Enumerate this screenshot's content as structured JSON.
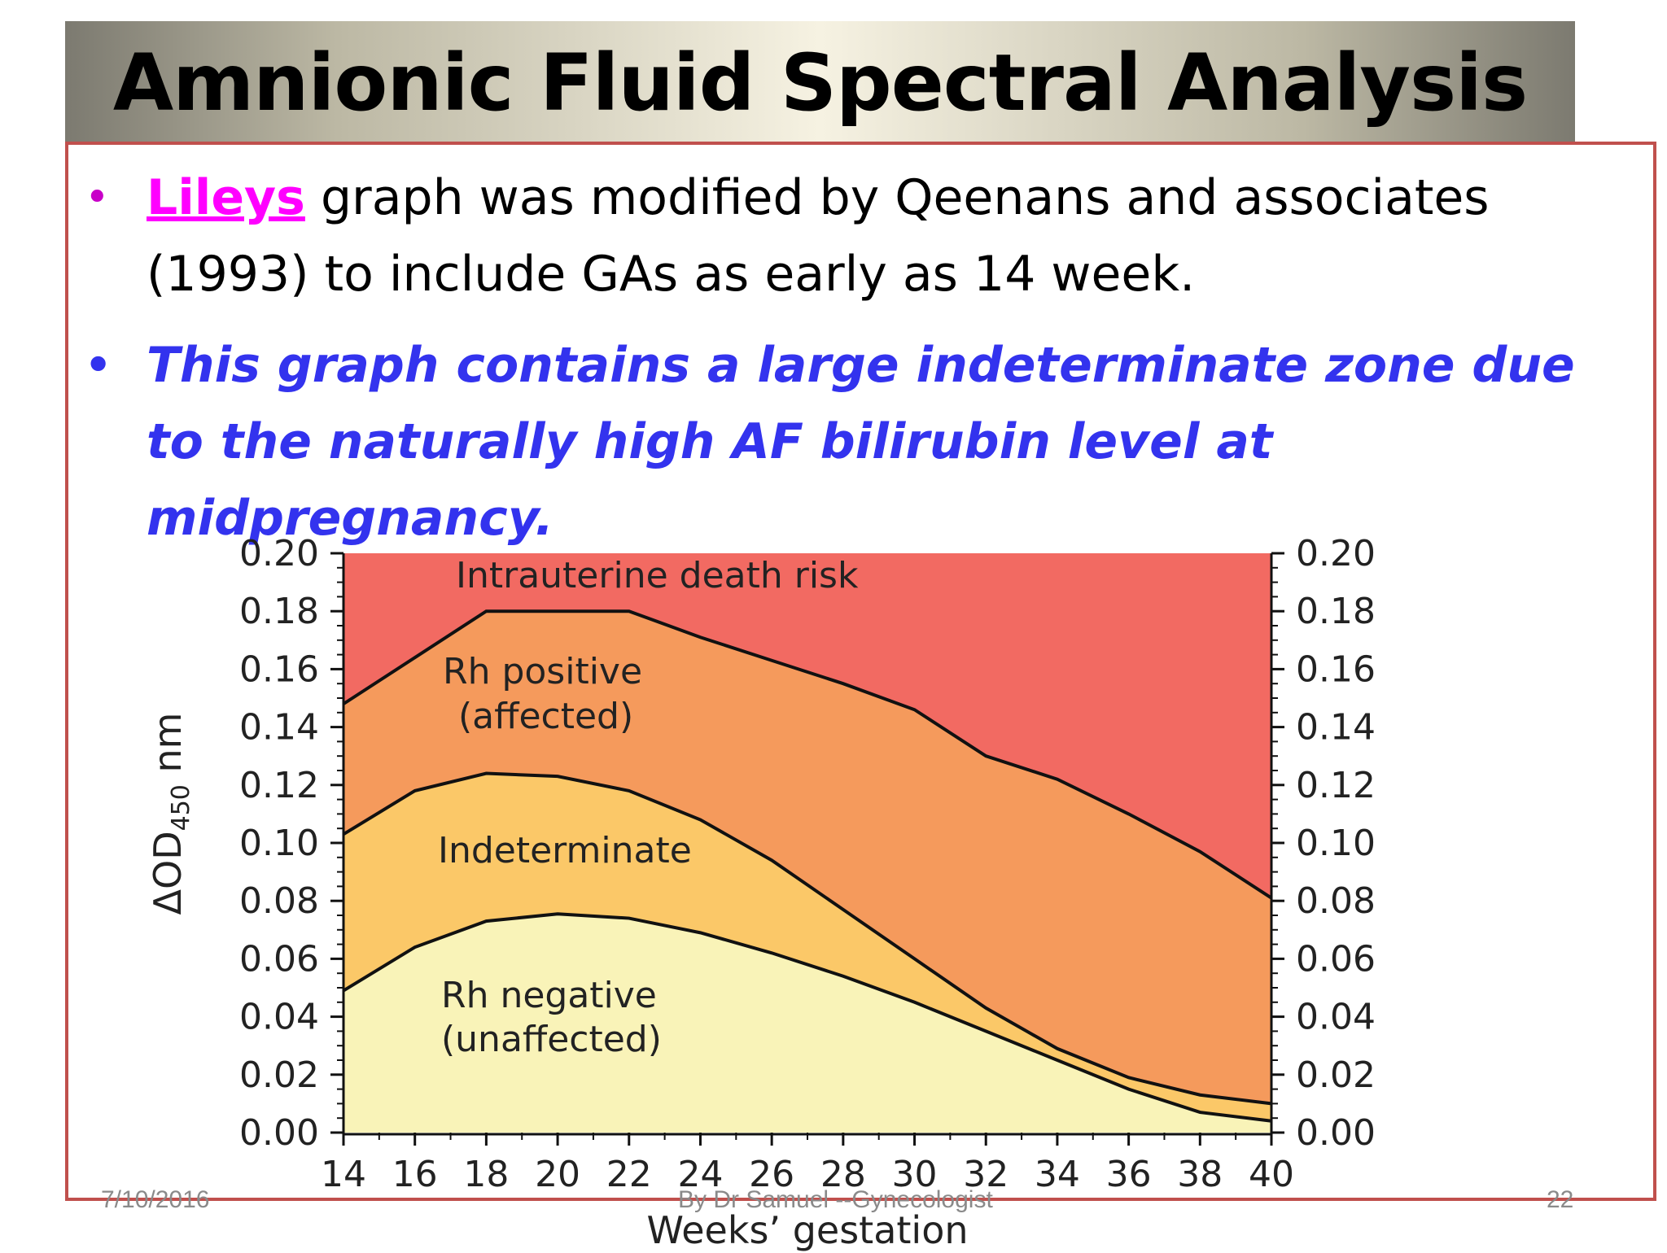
{
  "slide": {
    "title": "Amnionic Fluid Spectral Analysis",
    "bullet1_highlight": "Lileys",
    "bullet1_rest": " graph was modified by Qeenans and associates (1993) to include GAs as early as 14 week.",
    "bullet2": "This graph contains a large indeterminate zone due to the  naturally high AF bilirubin level at midpregnancy.",
    "footer_date": "7/10/2016",
    "footer_author": "By Dr Samuel --Gynecologist",
    "footer_page": "22"
  },
  "chart_data": {
    "type": "area",
    "xlabel": "Weeks’ gestation",
    "ylabel": "ΔOD",
    "ylabel_subscript": "450",
    "ylabel_unit": " nm",
    "xlim": [
      14,
      40
    ],
    "ylim": [
      0,
      0.2
    ],
    "x_ticks": [
      "14",
      "16",
      "18",
      "20",
      "22",
      "24",
      "26",
      "28",
      "30",
      "32",
      "34",
      "36",
      "38",
      "40"
    ],
    "y_ticks": [
      "0.00",
      "0.02",
      "0.04",
      "0.06",
      "0.08",
      "0.10",
      "0.12",
      "0.14",
      "0.16",
      "0.18",
      "0.20"
    ],
    "x": [
      14,
      16,
      18,
      20,
      22,
      24,
      26,
      28,
      30,
      32,
      34,
      36,
      38,
      40
    ],
    "series": [
      {
        "name": "Rh negative (unaffected)",
        "color": "#f9f3b8",
        "values": [
          0.049,
          0.064,
          0.073,
          0.0755,
          0.074,
          0.069,
          0.062,
          0.054,
          0.045,
          0.035,
          0.025,
          0.015,
          0.007,
          0.004
        ]
      },
      {
        "name": "Indeterminate",
        "color": "#fbc868",
        "values": [
          0.103,
          0.118,
          0.124,
          0.123,
          0.118,
          0.108,
          0.094,
          0.077,
          0.06,
          0.043,
          0.029,
          0.019,
          0.013,
          0.01
        ]
      },
      {
        "name": "Rh positive (affected)",
        "color": "#f59a5c",
        "values": [
          0.148,
          0.164,
          0.18,
          0.18,
          0.18,
          0.171,
          0.163,
          0.155,
          0.146,
          0.13,
          0.122,
          0.11,
          0.097,
          0.081
        ]
      },
      {
        "name": "Intrauterine death risk",
        "color": "#f26a62",
        "values": [
          0.2,
          0.2,
          0.2,
          0.2,
          0.2,
          0.2,
          0.2,
          0.2,
          0.2,
          0.2,
          0.2,
          0.2,
          0.2,
          0.2
        ]
      }
    ],
    "zone_labels": {
      "death": "Intrauterine death risk",
      "positive_1": "Rh positive",
      "positive_2": "(affected)",
      "indeterminate": "Indeterminate",
      "negative_1": "Rh negative",
      "negative_2": "(unaffected)"
    },
    "grid": false,
    "legend": "none"
  }
}
